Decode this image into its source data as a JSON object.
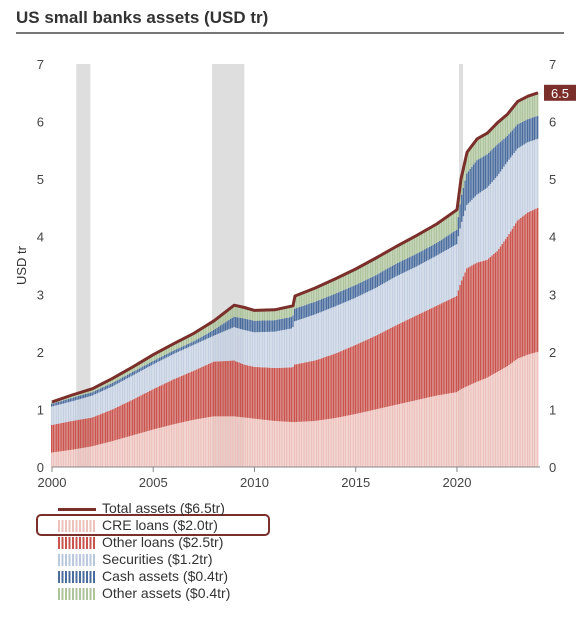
{
  "title": "US small banks assets (USD tr)",
  "highlight_label": "6.5",
  "colors": {
    "cre": "#edc2bd",
    "other_loans": "#c9544e",
    "securities": "#c4d0e1",
    "cash": "#4a6d9e",
    "other_assets": "#adc39b",
    "total": "#7a2f2a",
    "recession": "#dedede"
  },
  "legend": [
    {
      "label": "Total assets ($6.5tr)",
      "kind": "line",
      "color": "#7a2f2a"
    },
    {
      "label": "CRE loans ($2.0tr)",
      "kind": "bar",
      "color": "#edc2bd"
    },
    {
      "label": "Other loans ($2.5tr)",
      "kind": "bar",
      "color": "#c9544e"
    },
    {
      "label": "Securities ($1.2tr)",
      "kind": "bar",
      "color": "#b9c8dc"
    },
    {
      "label": "Cash assets ($0.4tr)",
      "kind": "bar",
      "color": "#4a6d9e"
    },
    {
      "label": "Other assets ($0.4tr)",
      "kind": "bar",
      "color": "#adc39b"
    }
  ],
  "chart_data": {
    "type": "area",
    "title": "US small banks assets (USD tr)",
    "ylabel": "USD tr",
    "xlim": [
      2000,
      2024.1
    ],
    "ylim": [
      0,
      7
    ],
    "x_ticks": [
      2000,
      2005,
      2010,
      2015,
      2020
    ],
    "y_ticks": [
      0,
      1,
      2,
      3,
      4,
      5,
      6,
      7
    ],
    "recessions": [
      [
        2001.2,
        2001.9
      ],
      [
        2007.9,
        2009.5
      ],
      [
        2020.1,
        2020.3
      ]
    ],
    "x": [
      2000,
      2001,
      2002,
      2003,
      2004,
      2005,
      2006,
      2007,
      2008,
      2009,
      2009.5,
      2010,
      2011,
      2011.9,
      2012,
      2013,
      2014,
      2015,
      2016,
      2017,
      2018,
      2019,
      2020,
      2020.2,
      2020.5,
      2021,
      2021.5,
      2022,
      2022.5,
      2023,
      2023.5,
      2024
    ],
    "series": [
      {
        "name": "CRE loans ($2.0tr)",
        "values": [
          0.25,
          0.3,
          0.36,
          0.45,
          0.55,
          0.65,
          0.74,
          0.82,
          0.88,
          0.88,
          0.86,
          0.84,
          0.8,
          0.78,
          0.78,
          0.8,
          0.85,
          0.92,
          1.0,
          1.08,
          1.16,
          1.24,
          1.3,
          1.35,
          1.4,
          1.48,
          1.55,
          1.65,
          1.75,
          1.88,
          1.95,
          2.0
        ]
      },
      {
        "name": "Other loans ($2.5tr)",
        "values": [
          0.48,
          0.5,
          0.5,
          0.55,
          0.62,
          0.7,
          0.78,
          0.85,
          0.95,
          0.97,
          0.92,
          0.9,
          0.92,
          0.95,
          1.0,
          1.05,
          1.12,
          1.2,
          1.28,
          1.38,
          1.47,
          1.56,
          1.67,
          1.85,
          2.05,
          2.07,
          2.05,
          2.1,
          2.25,
          2.4,
          2.47,
          2.5
        ]
      },
      {
        "name": "Securities ($1.2tr)",
        "values": [
          0.32,
          0.34,
          0.38,
          0.4,
          0.42,
          0.43,
          0.44,
          0.45,
          0.45,
          0.58,
          0.6,
          0.6,
          0.63,
          0.68,
          0.75,
          0.8,
          0.82,
          0.82,
          0.83,
          0.85,
          0.85,
          0.87,
          0.9,
          1.0,
          1.1,
          1.18,
          1.25,
          1.3,
          1.3,
          1.25,
          1.22,
          1.2
        ]
      },
      {
        "name": "Cash assets ($0.4tr)",
        "values": [
          0.05,
          0.06,
          0.06,
          0.06,
          0.06,
          0.06,
          0.06,
          0.06,
          0.1,
          0.18,
          0.2,
          0.2,
          0.2,
          0.2,
          0.22,
          0.22,
          0.22,
          0.22,
          0.22,
          0.22,
          0.22,
          0.22,
          0.25,
          0.45,
          0.55,
          0.6,
          0.58,
          0.55,
          0.45,
          0.42,
          0.4,
          0.4
        ]
      },
      {
        "name": "Other assets ($0.4tr)",
        "values": [
          0.03,
          0.05,
          0.06,
          0.08,
          0.09,
          0.11,
          0.12,
          0.14,
          0.16,
          0.2,
          0.19,
          0.18,
          0.18,
          0.19,
          0.22,
          0.24,
          0.26,
          0.28,
          0.3,
          0.3,
          0.32,
          0.33,
          0.35,
          0.35,
          0.37,
          0.37,
          0.37,
          0.38,
          0.38,
          0.4,
          0.4,
          0.4
        ]
      }
    ],
    "total": {
      "name": "Total assets ($6.5tr)",
      "values": [
        1.13,
        1.25,
        1.36,
        1.54,
        1.74,
        1.95,
        2.14,
        2.32,
        2.54,
        2.81,
        2.77,
        2.72,
        2.73,
        2.8,
        2.97,
        3.11,
        3.27,
        3.44,
        3.63,
        3.83,
        4.02,
        4.22,
        4.47,
        5.0,
        5.47,
        5.7,
        5.8,
        5.98,
        6.13,
        6.35,
        6.44,
        6.5
      ]
    },
    "legend_position": "bottom-left",
    "grid": false
  }
}
